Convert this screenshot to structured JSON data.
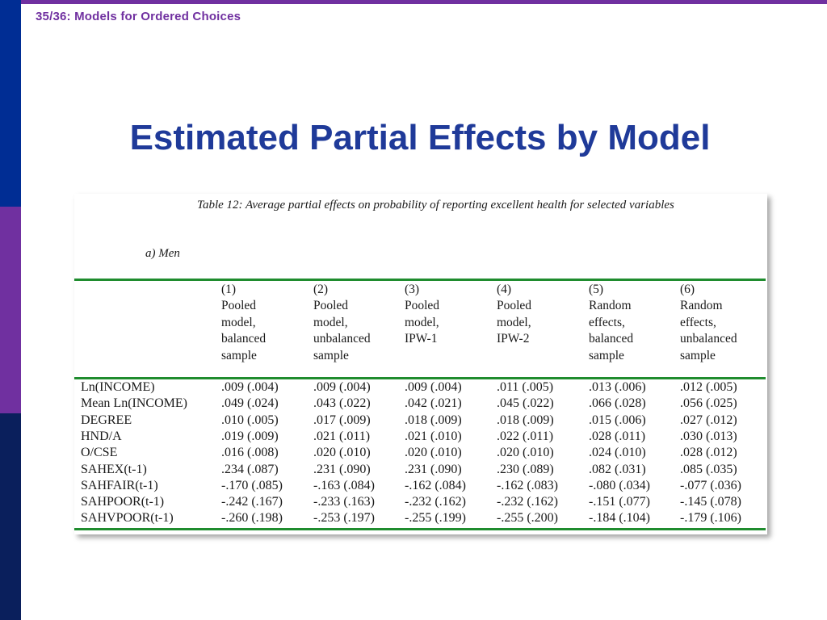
{
  "header": {
    "label": "35/36:  Models for Ordered Choices"
  },
  "title": "Estimated Partial Effects by Model",
  "table": {
    "caption": "Table 12: Average partial effects on probability of reporting excellent health for selected variables",
    "subheading": "a)  Men",
    "columns": [
      {
        "number": "(1)",
        "desc": "Pooled\nmodel,\nbalanced\nsample"
      },
      {
        "number": "(2)",
        "desc": "Pooled\nmodel,\nunbalanced\nsample"
      },
      {
        "number": "(3)",
        "desc": "Pooled\nmodel,\nIPW-1"
      },
      {
        "number": "(4)",
        "desc": "Pooled\nmodel,\nIPW-2"
      },
      {
        "number": "(5)",
        "desc": "Random\neffects,\nbalanced\nsample"
      },
      {
        "number": "(6)",
        "desc": "Random\neffects,\nunbalanced\nsample"
      }
    ],
    "rows": [
      {
        "label": "Ln(INCOME)",
        "values": [
          ".009 (.004)",
          ".009 (.004)",
          ".009 (.004)",
          ".011 (.005)",
          ".013 (.006)",
          ".012 (.005)"
        ]
      },
      {
        "label": "Mean Ln(INCOME)",
        "values": [
          ".049 (.024)",
          ".043 (.022)",
          ".042 (.021)",
          ".045 (.022)",
          ".066 (.028)",
          ".056 (.025)"
        ]
      },
      {
        "label": "DEGREE",
        "values": [
          ".010 (.005)",
          ".017 (.009)",
          ".018 (.009)",
          ".018 (.009)",
          ".015 (.006)",
          ".027 (.012)"
        ]
      },
      {
        "label": "HND/A",
        "values": [
          ".019 (.009)",
          ".021 (.011)",
          ".021 (.010)",
          ".022 (.011)",
          ".028 (.011)",
          ".030 (.013)"
        ]
      },
      {
        "label": "O/CSE",
        "values": [
          ".016 (.008)",
          ".020 (.010)",
          ".020 (.010)",
          ".020 (.010)",
          ".024 (.010)",
          ".028 (.012)"
        ]
      },
      {
        "label": "SAHEX(t-1)",
        "values": [
          ".234 (.087)",
          ".231 (.090)",
          ".231 (.090)",
          ".230 (.089)",
          ".082 (.031)",
          ".085 (.035)"
        ]
      },
      {
        "label": "SAHFAIR(t-1)",
        "values": [
          "-.170 (.085)",
          "-.163 (.084)",
          "-.162 (.084)",
          "-.162 (.083)",
          "-.080 (.034)",
          "-.077 (.036)"
        ]
      },
      {
        "label": "SAHPOOR(t-1)",
        "values": [
          "-.242 (.167)",
          "-.233 (.163)",
          "-.232 (.162)",
          "-.232 (.162)",
          "-.151 (.077)",
          "-.145 (.078)"
        ]
      },
      {
        "label": "SAHVPOOR(t-1)",
        "values": [
          "-.260 (.198)",
          "-.253 (.197)",
          "-.255 (.199)",
          "-.255 (.200)",
          "-.184 (.104)",
          "-.179 (.106)"
        ]
      }
    ]
  },
  "colors": {
    "accent": "#7030a0",
    "title": "#1f3a99",
    "rule": "#1f8c2e",
    "sidebar": [
      "#002d94",
      "#7030a0",
      "#0a1f5c"
    ]
  }
}
